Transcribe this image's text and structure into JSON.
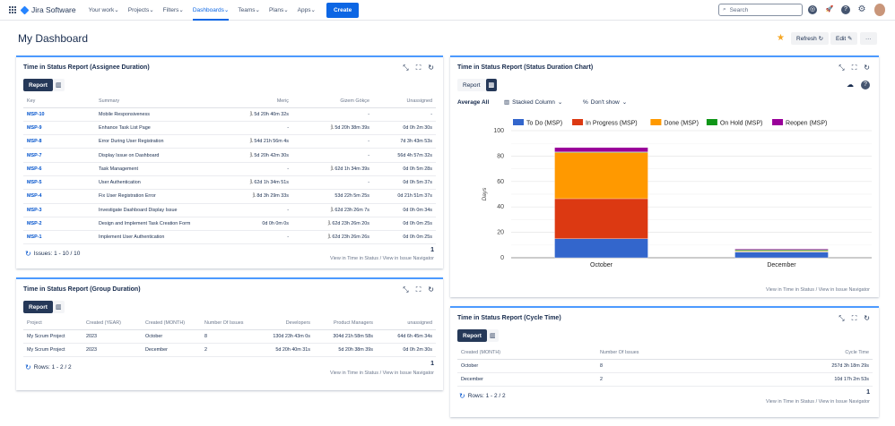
{
  "topbar": {
    "app": "Jira Software",
    "nav": [
      "Your work",
      "Projects",
      "Filters",
      "Dashboards",
      "Teams",
      "Plans",
      "Apps"
    ],
    "active": "Dashboards",
    "create": "Create",
    "search_placeholder": "Search"
  },
  "page": {
    "title": "My Dashboard",
    "refresh": "Refresh",
    "edit": "Edit",
    "more": "···"
  },
  "assignee": {
    "title": "Time in Status Report (Assignee Duration)",
    "report_tab": "Report",
    "columns": [
      "Key",
      "Summary",
      "Meriç",
      "Gizem Gökçe",
      "Unassigned"
    ],
    "rows": [
      [
        "MSP-10",
        "Mobile Responsiveness",
        "5d 20h 40m 32s",
        "-",
        "-"
      ],
      [
        "MSP-9",
        "Enhance Task List Page",
        "-",
        "5d 20h 38m 39s",
        "0d 0h 2m 30s"
      ],
      [
        "MSP-8",
        "Error During User Registration",
        "54d 21h 56m 4s",
        "-",
        "7d 3h 43m 53s"
      ],
      [
        "MSP-7",
        "Display Issue on Dashboard",
        "5d 20h 42m 30s",
        "-",
        "56d 4h 57m 32s"
      ],
      [
        "MSP-6",
        "Task Management",
        "-",
        "62d 1h 34m 39s",
        "0d 0h 5m 28s"
      ],
      [
        "MSP-5",
        "User Authentication",
        "62d 1h 34m 51s",
        "-",
        "0d 0h 5m 37s"
      ],
      [
        "MSP-4",
        "Fix User Registration Error",
        "8d 3h 29m 33s",
        "53d 22h 5m 25s",
        "0d 21h 51m 37s"
      ],
      [
        "MSP-3",
        "Investigate Dashboard Display Issue",
        "-",
        "62d 23h 26m 7s",
        "0d 0h 0m 34s"
      ],
      [
        "MSP-2",
        "Design and Implement Task Creation Form",
        "0d 0h 0m 0s",
        "62d 23h 26m 20s",
        "0d 0h 0m 25s"
      ],
      [
        "MSP-1",
        "Implement User Authentication",
        "-",
        "62d 23h 26m 26s",
        "0d 0h 0m 25s"
      ]
    ],
    "runner_cells": [
      [
        0,
        2
      ],
      [
        1,
        3
      ],
      [
        2,
        2
      ],
      [
        3,
        2
      ],
      [
        4,
        3
      ],
      [
        5,
        2
      ],
      [
        6,
        2
      ],
      [
        7,
        3
      ],
      [
        8,
        3
      ],
      [
        9,
        3
      ]
    ],
    "footer": "Issues: 1 - 10 / 10",
    "page": "1",
    "link1": "View in Time in Status",
    "sep": "/",
    "link2": "View in Issue Navigator"
  },
  "group": {
    "title": "Time in Status Report (Group Duration)",
    "report_tab": "Report",
    "columns": [
      "Project",
      "Created (YEAR)",
      "Created (MONTH)",
      "Number Of Issues",
      "Developers",
      "Product Managers",
      "unassigned"
    ],
    "rows": [
      [
        "My Scrum Project",
        "2023",
        "October",
        "8",
        "130d 23h 43m 0s",
        "304d 21h 58m 58s",
        "64d 6h 45m 34s"
      ],
      [
        "My Scrum Project",
        "2023",
        "December",
        "2",
        "5d 20h 40m 31s",
        "5d 20h 38m 39s",
        "0d 0h 2m 30s"
      ]
    ],
    "footer": "Rows: 1 - 2 / 2",
    "page": "1",
    "link1": "View in Time in Status",
    "sep": "/",
    "link2": "View in Issue Navigator"
  },
  "chartpanel": {
    "title": "Time in Status Report (Status Duration Chart)",
    "report_tab": "Report",
    "average": "Average All",
    "chart_type": "Stacked Column",
    "show": "Don't show",
    "link1": "View in Time in Status",
    "sep": "/",
    "link2": "View in Issue Navigator"
  },
  "chart_data": {
    "type": "bar",
    "stacked": true,
    "categories": [
      "October",
      "December"
    ],
    "ylabel": "Days",
    "ylim": [
      0,
      100
    ],
    "yticks": [
      0,
      20,
      40,
      60,
      80,
      100
    ],
    "grid": true,
    "legend": "top",
    "series": [
      {
        "name": "To Do (MSP)",
        "color": "#3366cc",
        "values": [
          15,
          4.5
        ]
      },
      {
        "name": "In Progress (MSP)",
        "color": "#dc3912",
        "values": [
          31.5,
          0.3
        ]
      },
      {
        "name": "Done (MSP)",
        "color": "#ff9900",
        "values": [
          36.3,
          0.5
        ]
      },
      {
        "name": "On Hold (MSP)",
        "color": "#109618",
        "values": [
          0.5,
          0.8
        ]
      },
      {
        "name": "Reopen (MSP)",
        "color": "#990099",
        "values": [
          3.4,
          0.7
        ]
      }
    ]
  },
  "cycle": {
    "title": "Time in Status Report (Cycle Time)",
    "report_tab": "Report",
    "columns": [
      "Created (MONTH)",
      "Number Of Issues",
      "Cycle Time"
    ],
    "rows": [
      [
        "October",
        "8",
        "257d 3h 18m 29s"
      ],
      [
        "December",
        "2",
        "10d 17h 2m 53s"
      ]
    ],
    "footer": "Rows: 1 - 2 / 2",
    "page": "1",
    "link1": "View in Time in Status",
    "sep": "/",
    "link2": "View in Issue Navigator"
  }
}
